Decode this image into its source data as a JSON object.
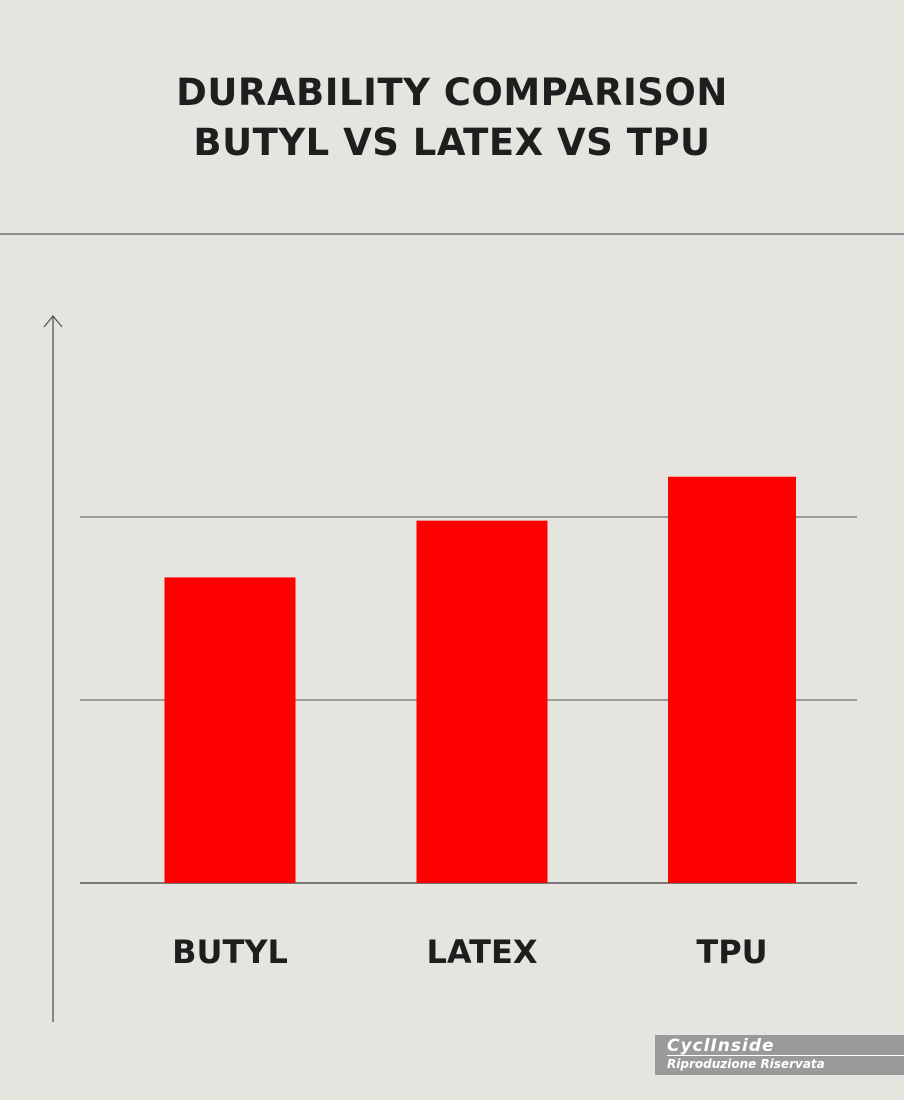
{
  "colors": {
    "background": "#e6e4df",
    "bar": "#ff0000",
    "text": "#1e1e1e",
    "gridline": "#555555",
    "divider": "#8c8c8c",
    "watermark_bg": "#9a9a9a"
  },
  "header": {
    "title_line1": "DURABILITY COMPARISON",
    "title_line2": "BUTYL VS LATEX VS TPU"
  },
  "chart_data": {
    "type": "bar",
    "title": "DURABILITY COMPARISON BUTYL VS LATEX VS TPU",
    "categories": [
      "BUTYL",
      "LATEX",
      "TPU"
    ],
    "values": [
      1.67,
      1.98,
      2.22
    ],
    "ylim": [
      0,
      2.8
    ],
    "gridlines": [
      0,
      1,
      2
    ],
    "xlabel": "",
    "ylabel": "",
    "y_tick_labels_shown": false,
    "grid": true,
    "legend": "none"
  },
  "watermark": {
    "brand": "CyclInside",
    "subtitle": "Riproduzione Riservata"
  }
}
